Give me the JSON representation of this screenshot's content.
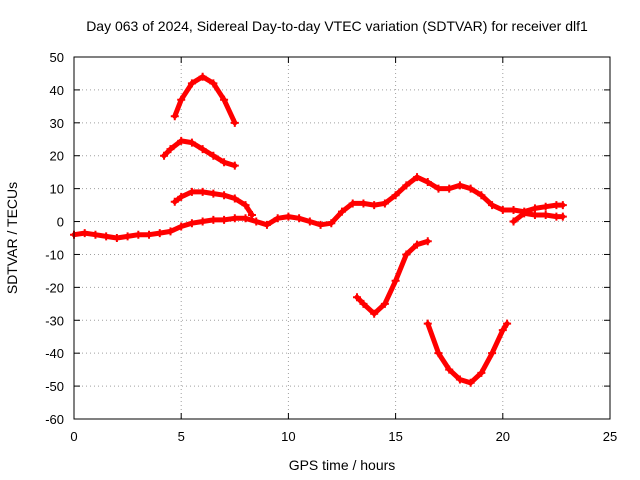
{
  "chart_data": {
    "type": "scatter",
    "title": "Day 063 of 2024, Sidereal Day-to-day VTEC variation (SDTVAR) for receiver dlf1",
    "xlabel": "GPS time / hours",
    "ylabel": "SDTVAR / TECUs",
    "xlim": [
      0,
      25
    ],
    "ylim": [
      -60,
      50
    ],
    "xticks": [
      0,
      5,
      10,
      15,
      20,
      25
    ],
    "yticks": [
      -60,
      -50,
      -40,
      -30,
      -20,
      -10,
      0,
      10,
      20,
      30,
      40,
      50
    ],
    "grid": true,
    "marker": "plus",
    "series_color": "#ff0000",
    "series": [
      {
        "name": "main-trace",
        "x": [
          0,
          0.5,
          1,
          1.5,
          2,
          2.5,
          3,
          3.5,
          4,
          4.5,
          5,
          5.5,
          6,
          6.5,
          7,
          7.5,
          8,
          8.5,
          9,
          9.5,
          10,
          10.5,
          11,
          11.5,
          12,
          12.5,
          13,
          13.5,
          14,
          14.5,
          15,
          15.5,
          16,
          16.5,
          17,
          17.5,
          18,
          18.5,
          19,
          19.5,
          20,
          20.5,
          21,
          21.5,
          22,
          22.5,
          22.8
        ],
        "y": [
          -4,
          -3.5,
          -4,
          -4.5,
          -5,
          -4.5,
          -4,
          -4,
          -3.5,
          -3,
          -1.5,
          -0.5,
          0,
          0.5,
          0.5,
          1,
          1,
          0,
          -1,
          1,
          1.5,
          1,
          0,
          -1,
          -0.5,
          3,
          5.5,
          5.5,
          5,
          5.5,
          8,
          11,
          13.5,
          12,
          10,
          10,
          11,
          10,
          8,
          5,
          3.5,
          3.5,
          3,
          4,
          4.5,
          5,
          5
        ]
      },
      {
        "name": "arc-top-40",
        "x": [
          4.7,
          5,
          5.5,
          6,
          6.5,
          7,
          7.5
        ],
        "y": [
          32,
          37,
          42,
          44,
          42,
          37,
          30
        ]
      },
      {
        "name": "arc-top-25",
        "x": [
          4.2,
          4.5,
          5,
          5.5,
          6,
          6.5,
          7,
          7.5
        ],
        "y": [
          20,
          22,
          24.5,
          24,
          22,
          20,
          18,
          17
        ]
      },
      {
        "name": "arc-top-10",
        "x": [
          4.7,
          5,
          5.5,
          6,
          6.5,
          7,
          7.5,
          8,
          8.3
        ],
        "y": [
          6,
          7.5,
          9,
          9,
          8.5,
          8,
          7,
          5,
          2
        ]
      },
      {
        "name": "dip-14",
        "x": [
          13.2,
          13.5,
          14,
          14.5,
          15,
          15.5,
          16,
          16.5
        ],
        "y": [
          -23,
          -25,
          -28,
          -25,
          -18,
          -10,
          -7,
          -6
        ]
      },
      {
        "name": "dip-18",
        "x": [
          16.5,
          17,
          17.5,
          18,
          18.5,
          19,
          19.5,
          20,
          20.2
        ],
        "y": [
          -31,
          -40,
          -45,
          -48,
          -49,
          -46,
          -40,
          -33,
          -31
        ]
      },
      {
        "name": "late-branch",
        "x": [
          20.5,
          21,
          21.5,
          22,
          22.5,
          22.8
        ],
        "y": [
          0,
          2.5,
          2,
          2,
          1.5,
          1.5
        ]
      }
    ]
  }
}
